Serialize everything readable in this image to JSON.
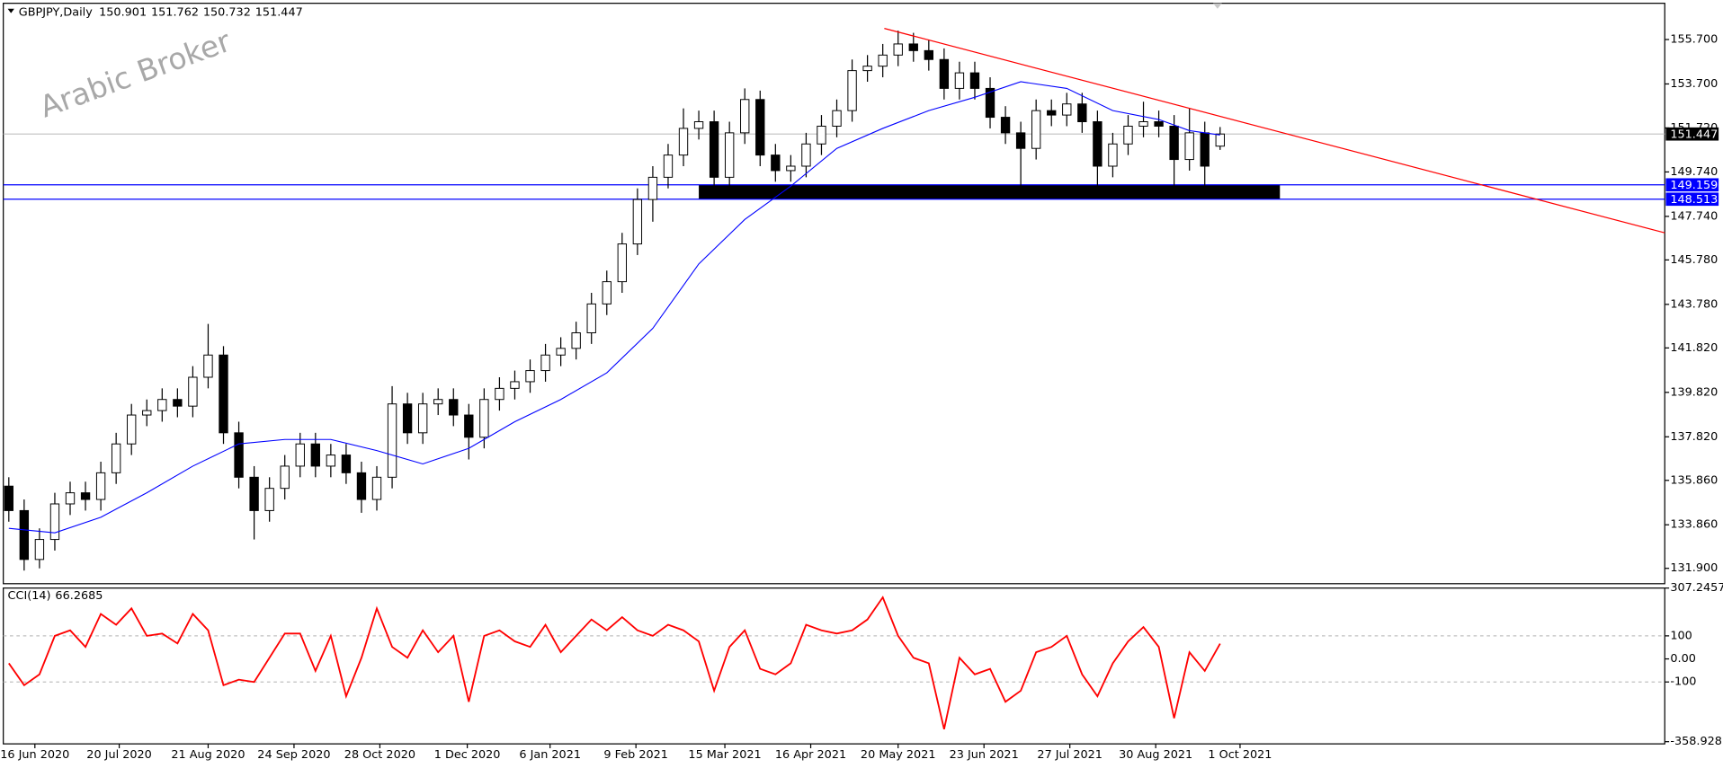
{
  "header": {
    "symbol": "GBPJPY,Daily",
    "watermark": "Arabic Broker"
  },
  "chart_data": [
    {
      "type": "candlestick",
      "open": [
        135.6,
        134.5,
        132.3,
        133.2,
        134.8,
        135.3,
        135.0,
        136.2,
        137.5,
        138.8,
        139.0,
        139.5,
        139.2,
        140.5,
        141.5,
        138.0,
        136.0,
        134.5,
        135.5,
        136.5,
        137.5,
        136.5,
        137.0,
        136.2,
        135.0,
        136.0,
        139.3,
        138.0,
        139.3,
        139.5,
        138.8,
        137.8,
        139.5,
        140.0,
        140.3,
        140.8,
        141.5,
        141.8,
        142.5,
        143.8,
        144.8,
        146.5,
        148.5,
        149.5,
        150.5,
        151.7,
        152.0,
        149.5,
        151.5,
        153.0,
        150.5,
        149.8,
        150.0,
        151.0,
        151.8,
        152.5,
        154.3,
        154.5,
        155.0,
        155.5,
        155.2,
        154.8,
        153.5,
        154.2,
        153.5,
        152.2,
        151.5,
        150.8,
        152.5,
        152.3,
        152.8,
        152.0,
        150.0,
        151.0,
        151.8,
        152.0,
        151.8,
        150.3,
        151.5,
        150.901
      ],
      "high": [
        136.0,
        135.0,
        133.7,
        135.3,
        135.8,
        135.8,
        136.7,
        138.0,
        139.3,
        139.5,
        140.0,
        140.0,
        141.0,
        142.9,
        141.9,
        138.5,
        136.5,
        136.0,
        137.0,
        138.0,
        138.0,
        137.5,
        137.5,
        136.7,
        136.5,
        140.1,
        139.8,
        139.8,
        140.0,
        140.0,
        139.3,
        140.0,
        140.5,
        140.8,
        141.3,
        142.0,
        142.3,
        143.0,
        144.3,
        145.3,
        147.0,
        149.0,
        150.0,
        151.0,
        152.6,
        152.5,
        152.5,
        152.0,
        153.5,
        153.4,
        151.0,
        150.5,
        151.5,
        152.3,
        153.0,
        154.8,
        155.0,
        155.5,
        156.1,
        156.0,
        155.7,
        155.3,
        154.7,
        154.7,
        154.0,
        152.7,
        152.0,
        153.0,
        153.0,
        153.3,
        153.3,
        152.5,
        151.5,
        152.3,
        152.9,
        152.5,
        152.3,
        152.6,
        152.0,
        151.762
      ],
      "low": [
        134.0,
        131.8,
        131.9,
        132.7,
        134.3,
        134.5,
        134.5,
        135.7,
        137.0,
        138.3,
        138.5,
        138.7,
        138.7,
        140.0,
        137.5,
        135.5,
        133.2,
        134.0,
        135.0,
        136.0,
        136.0,
        136.0,
        135.7,
        134.4,
        134.5,
        135.5,
        137.5,
        137.5,
        138.8,
        138.3,
        136.8,
        137.3,
        139.0,
        139.5,
        139.8,
        140.3,
        141.0,
        141.3,
        142.0,
        143.3,
        144.3,
        146.0,
        147.5,
        149.0,
        150.0,
        151.2,
        148.9,
        149.0,
        151.0,
        150.0,
        149.3,
        149.3,
        149.5,
        150.5,
        151.3,
        152.0,
        153.8,
        154.0,
        154.5,
        154.7,
        154.3,
        153.0,
        153.0,
        153.0,
        151.7,
        151.0,
        149.0,
        150.3,
        151.8,
        151.8,
        151.5,
        149.1,
        149.5,
        150.5,
        151.3,
        151.3,
        148.9,
        149.8,
        149.0,
        150.732
      ],
      "close": [
        134.5,
        132.3,
        133.2,
        134.8,
        135.3,
        135.0,
        136.2,
        137.5,
        138.8,
        139.0,
        139.5,
        139.2,
        140.5,
        141.5,
        138.0,
        136.0,
        134.5,
        135.5,
        136.5,
        137.5,
        136.5,
        137.0,
        136.2,
        135.0,
        136.0,
        139.3,
        138.0,
        139.3,
        139.5,
        138.8,
        137.8,
        139.5,
        140.0,
        140.3,
        140.8,
        141.5,
        141.8,
        142.5,
        143.8,
        144.8,
        146.5,
        148.5,
        149.5,
        150.5,
        151.7,
        152.0,
        149.5,
        151.5,
        153.0,
        150.5,
        149.8,
        150.0,
        151.0,
        151.8,
        152.5,
        154.3,
        154.5,
        155.0,
        155.5,
        155.2,
        154.8,
        153.5,
        154.2,
        153.5,
        152.2,
        151.5,
        150.8,
        152.5,
        152.3,
        152.8,
        152.0,
        150.0,
        151.0,
        151.8,
        152.0,
        151.8,
        150.3,
        151.5,
        150.0,
        151.447
      ],
      "color": "#000000",
      "xlim": [
        -0.36,
        108.0
      ],
      "xticks": [
        {
          "value": 1.7,
          "label": "16 Jun 2020"
        },
        {
          "value": 7.2,
          "label": "20 Jul 2020"
        },
        {
          "value": 13.0,
          "label": "21 Aug 2020"
        },
        {
          "value": 18.6,
          "label": "24 Sep 2020"
        },
        {
          "value": 24.2,
          "label": "28 Oct 2020"
        },
        {
          "value": 29.9,
          "label": "1 Dec 2020"
        },
        {
          "value": 35.3,
          "label": "6 Jan 2021"
        },
        {
          "value": 40.9,
          "label": "9 Feb 2021"
        },
        {
          "value": 46.7,
          "label": "15 Mar 2021"
        },
        {
          "value": 52.3,
          "label": "16 Apr 2021"
        },
        {
          "value": 58.0,
          "label": "20 May 2021"
        },
        {
          "value": 63.6,
          "label": "23 Jun 2021"
        },
        {
          "value": 69.2,
          "label": "27 Jul 2021"
        },
        {
          "value": 74.8,
          "label": "30 Aug 2021"
        },
        {
          "value": 80.3,
          "label": "1 Oct 2021"
        }
      ],
      "ylim": [
        131.21,
        157.33
      ],
      "yticks": [
        {
          "value": 155.7,
          "label": "155.700"
        },
        {
          "value": 153.7,
          "label": "153.700"
        },
        {
          "value": 151.72,
          "label": "151.720"
        },
        {
          "value": 149.74,
          "label": "149.740"
        },
        {
          "value": 147.74,
          "label": "147.740"
        },
        {
          "value": 145.78,
          "label": "145.780"
        },
        {
          "value": 143.78,
          "label": "143.780"
        },
        {
          "value": 141.82,
          "label": "141.820"
        },
        {
          "value": 139.82,
          "label": "139.820"
        },
        {
          "value": 137.82,
          "label": "137.820"
        },
        {
          "value": 135.86,
          "label": "135.860"
        },
        {
          "value": 133.86,
          "label": "133.860"
        },
        {
          "value": 131.9,
          "label": "131.900"
        }
      ],
      "moving_average": {
        "color": "#0000ff",
        "x": [
          0,
          3,
          6,
          9,
          12,
          15,
          18,
          21,
          24,
          27,
          30,
          33,
          36,
          39,
          42,
          45,
          48,
          51,
          54,
          57,
          60,
          63,
          66,
          69,
          72,
          75,
          77,
          79
        ],
        "values": [
          133.7,
          133.5,
          134.2,
          135.3,
          136.5,
          137.5,
          137.7,
          137.7,
          137.2,
          136.6,
          137.3,
          138.5,
          139.5,
          140.7,
          142.7,
          145.6,
          147.6,
          149.1,
          150.8,
          151.7,
          152.5,
          153.1,
          153.8,
          153.5,
          152.5,
          152.1,
          151.6,
          151.4
        ]
      },
      "trendline": {
        "color": "#ff0000",
        "x": [
          57.1,
          108.0
        ],
        "y": [
          156.2,
          147.0
        ]
      },
      "levels": [
        {
          "value": 149.159,
          "color": "#0000ff"
        },
        {
          "value": 148.513,
          "color": "#0000ff"
        }
      ],
      "zone": {
        "x": [
          45.0,
          82.9
        ],
        "color": "#000000"
      },
      "price_line_color": "#c0c0c0"
    },
    {
      "type": "line",
      "title": "CCI(14)",
      "color": "#ff0000",
      "values": [
        -19,
        -114,
        -67,
        100,
        124,
        52,
        195,
        148,
        219,
        100,
        110,
        67,
        195,
        124,
        -114,
        -90,
        -100,
        5,
        110,
        110,
        -52,
        100,
        -162,
        5,
        219,
        52,
        5,
        124,
        29,
        100,
        -186,
        100,
        124,
        76,
        52,
        148,
        29,
        100,
        171,
        124,
        181,
        124,
        100,
        148,
        124,
        76,
        -138,
        52,
        124,
        -43,
        -67,
        -19,
        148,
        124,
        110,
        124,
        171,
        267,
        100,
        5,
        -19,
        -305,
        5,
        -67,
        -43,
        -186,
        -138,
        29,
        52,
        100,
        -67,
        -162,
        -19,
        76,
        138,
        52,
        -257,
        29,
        -52,
        66.2685
      ],
      "xlim": [
        -0.36,
        108.0
      ],
      "ylim": [
        -358.9285,
        307.2457
      ],
      "yticks": [
        307.2457,
        100,
        {
          "value": 0,
          "label": "0.00"
        },
        -100,
        -358.9285
      ],
      "levels": [
        100,
        -100
      ]
    }
  ]
}
